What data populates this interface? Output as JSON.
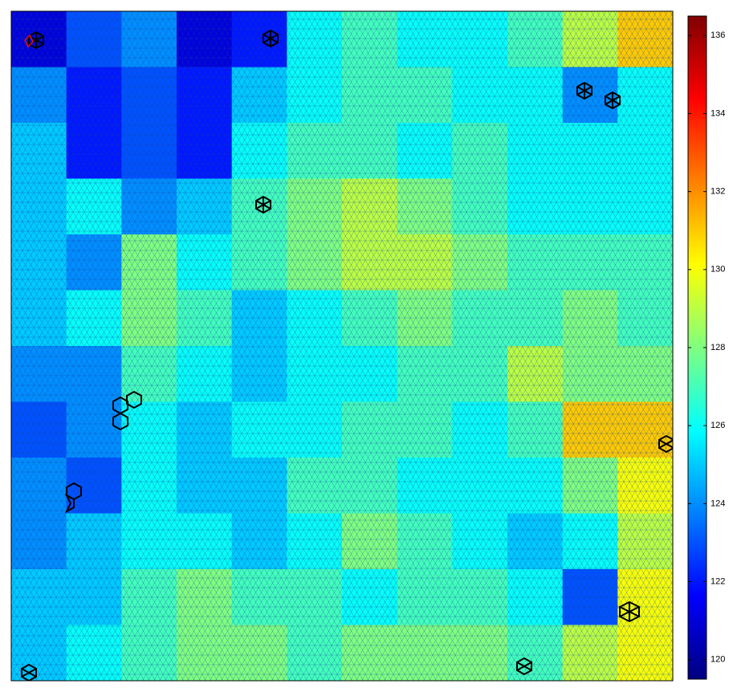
{
  "chart_data": {
    "type": "heatmap",
    "colormap": "jet",
    "values": [
      [
        121,
        123,
        124,
        121,
        122,
        126,
        127,
        126,
        126,
        127,
        129,
        131
      ],
      [
        124,
        122,
        123,
        122,
        125,
        126,
        127,
        127,
        126,
        126,
        124,
        126
      ],
      [
        125,
        122,
        123,
        122,
        126,
        127,
        127,
        126,
        127,
        126,
        126,
        126
      ],
      [
        125,
        126,
        124,
        125,
        127,
        128,
        129,
        128,
        127,
        126,
        126,
        126
      ],
      [
        125,
        124,
        128,
        126,
        127,
        128,
        129,
        129,
        128,
        127,
        127,
        127
      ],
      [
        125,
        126,
        128,
        127,
        125,
        126,
        127,
        128,
        127,
        127,
        128,
        127
      ],
      [
        124,
        124,
        127,
        126,
        125,
        126,
        126,
        127,
        127,
        129,
        128,
        128
      ],
      [
        123,
        124,
        126,
        125,
        126,
        126,
        127,
        127,
        126,
        127,
        131,
        131
      ],
      [
        124,
        123,
        126,
        125,
        125,
        127,
        127,
        126,
        126,
        126,
        128,
        130
      ],
      [
        124,
        125,
        126,
        126,
        125,
        126,
        128,
        127,
        126,
        125,
        126,
        129
      ],
      [
        125,
        125,
        127,
        128,
        127,
        127,
        126,
        127,
        127,
        126,
        123,
        130
      ],
      [
        125,
        126,
        127,
        128,
        128,
        127,
        128,
        128,
        128,
        127,
        129,
        130
      ]
    ],
    "clim": [
      119.5,
      136.5
    ],
    "cticks": [
      120,
      122,
      124,
      126,
      128,
      130,
      132,
      134,
      136
    ]
  }
}
